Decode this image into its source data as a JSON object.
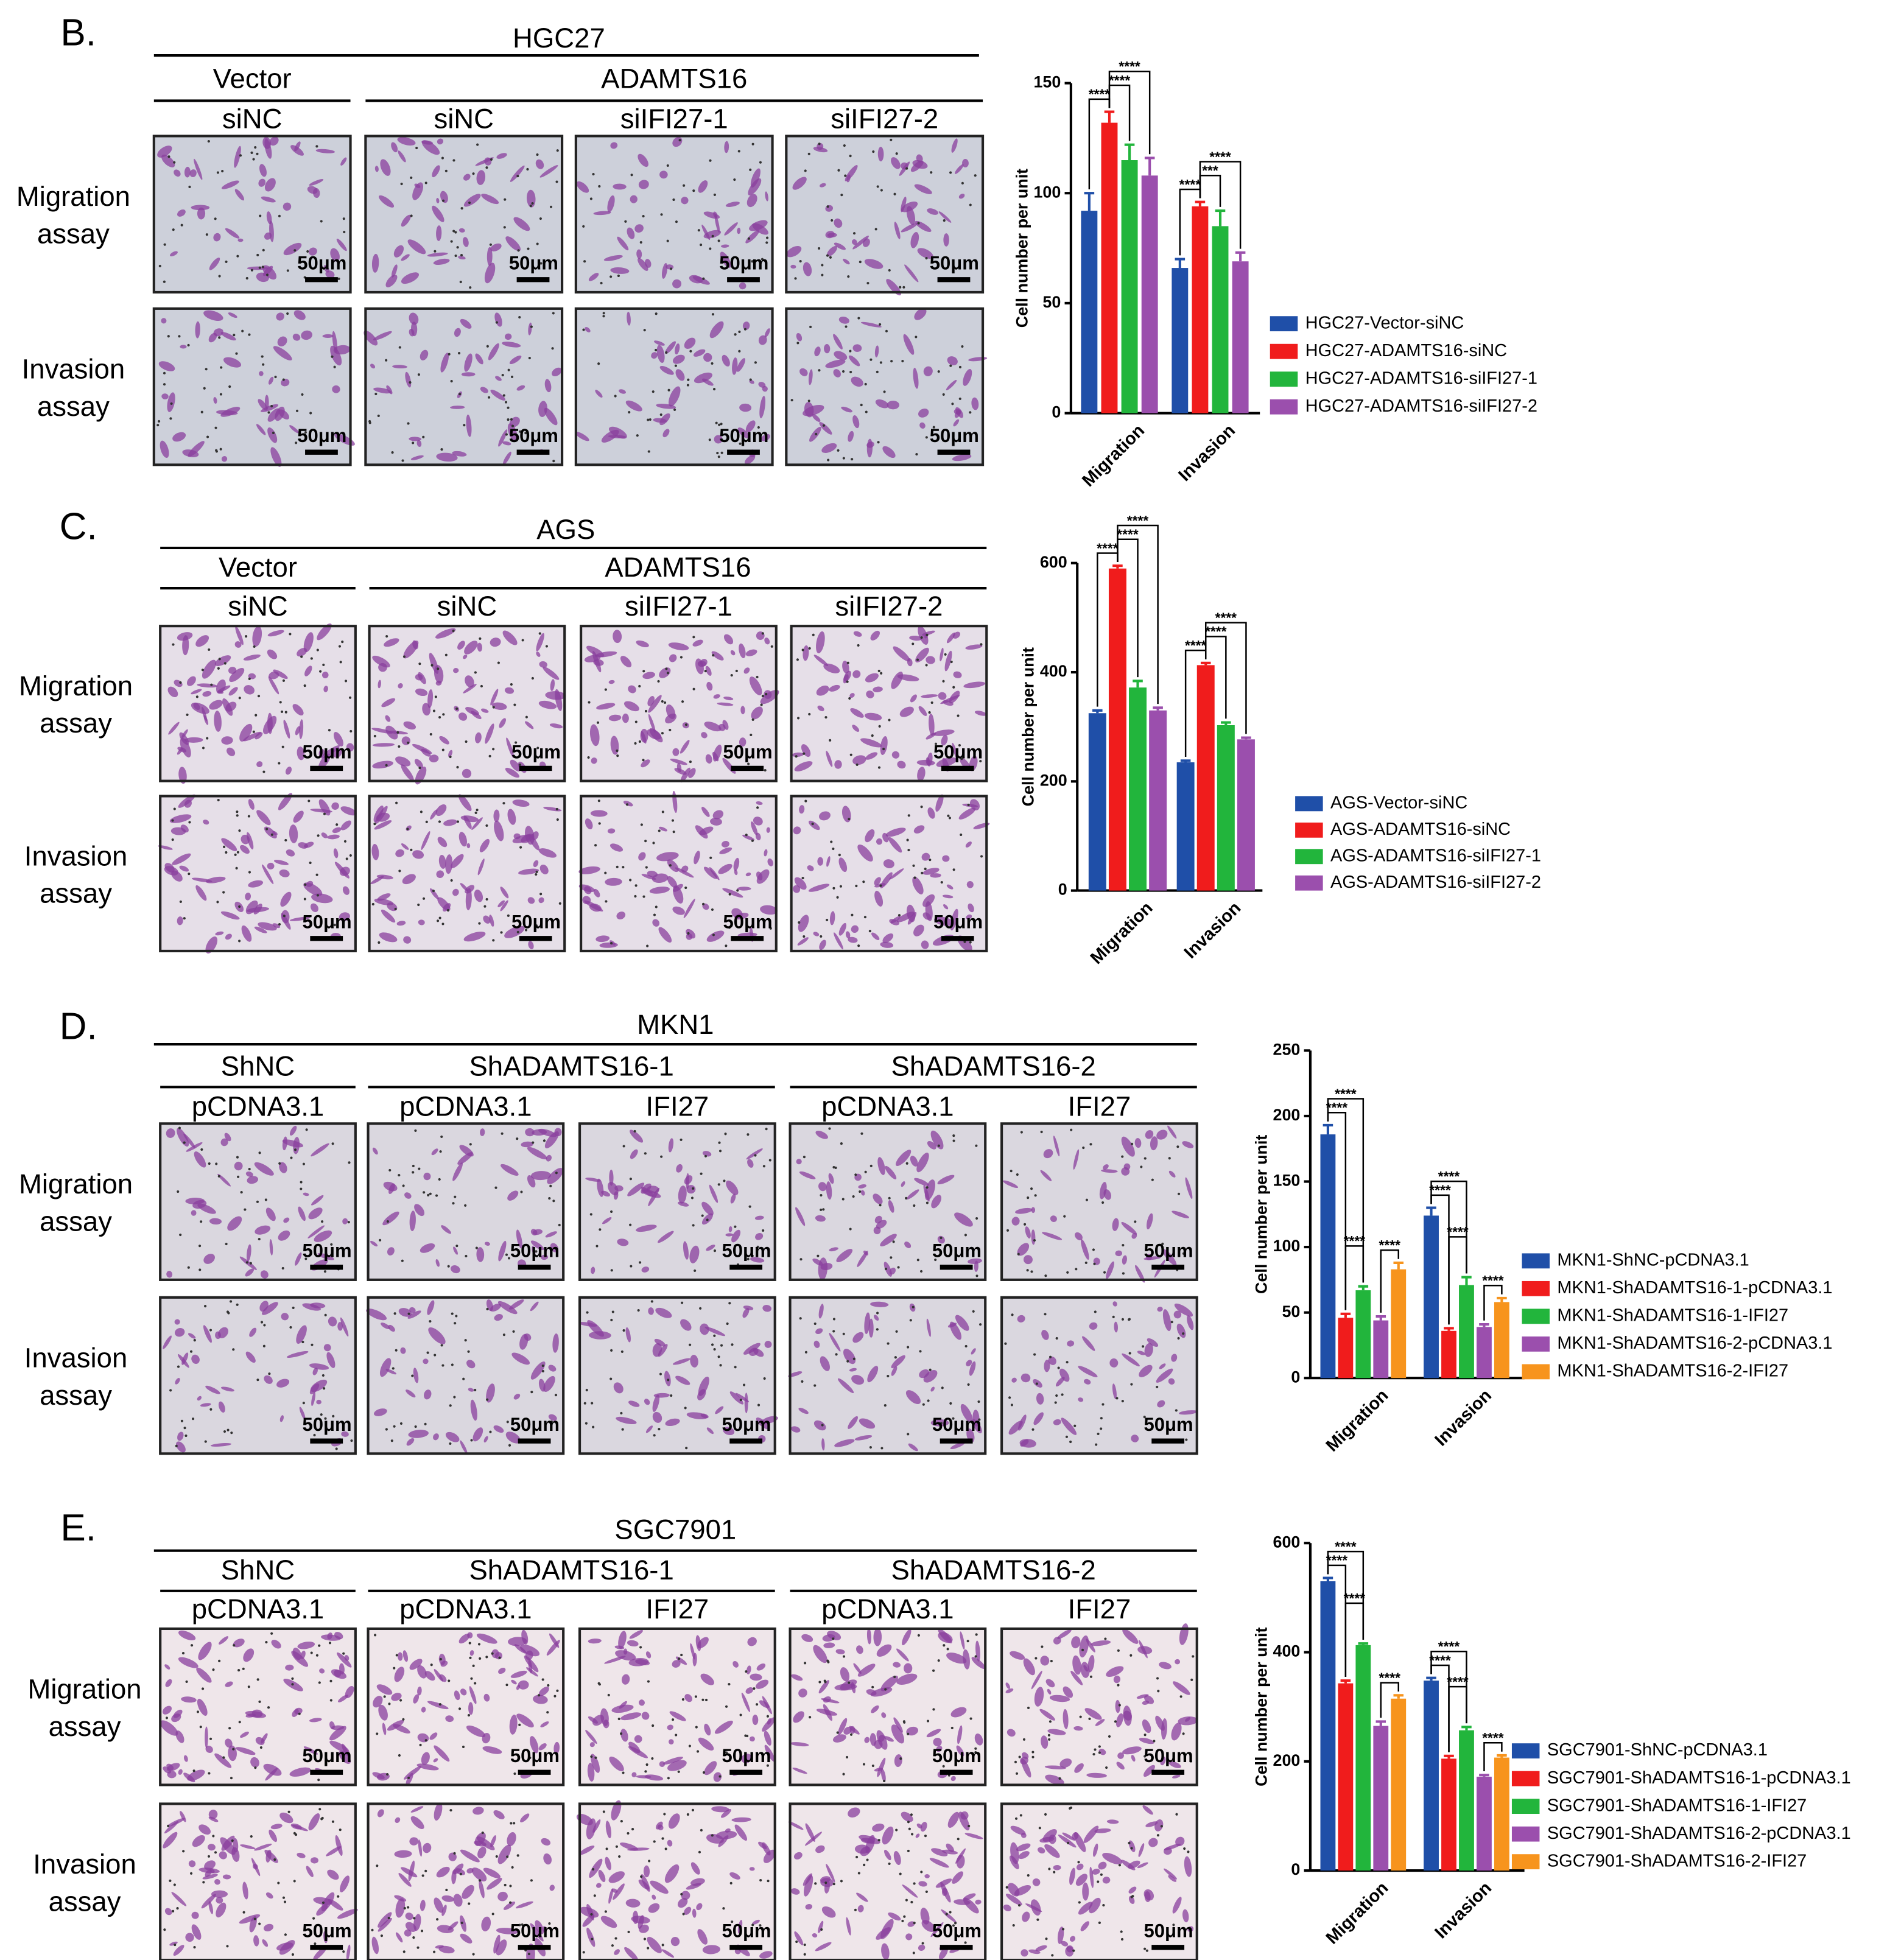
{
  "panels": [
    {
      "letter": "B.",
      "cell_line": "HGC27",
      "groups": [
        {
          "label": "Vector",
          "columns": [
            "siNC"
          ]
        },
        {
          "label": "ADAMTS16",
          "columns": [
            "siNC",
            "siIFI27-1",
            "siIFI27-2"
          ]
        }
      ],
      "rows": [
        [
          "Migration",
          "assay"
        ],
        [
          "Invasion",
          "assay"
        ]
      ],
      "scale_bar": "50μm"
    },
    {
      "letter": "C.",
      "cell_line": "AGS",
      "groups": [
        {
          "label": "Vector",
          "columns": [
            "siNC"
          ]
        },
        {
          "label": "ADAMTS16",
          "columns": [
            "siNC",
            "siIFI27-1",
            "siIFI27-2"
          ]
        }
      ],
      "rows": [
        [
          "Migration",
          "assay"
        ],
        [
          "Invasion",
          "assay"
        ]
      ],
      "scale_bar": "50μm"
    },
    {
      "letter": "D.",
      "cell_line": "MKN1",
      "groups": [
        {
          "label": "ShNC",
          "columns": [
            "pCDNA3.1"
          ]
        },
        {
          "label": "ShADAMTS16-1",
          "columns": [
            "pCDNA3.1",
            "IFI27"
          ]
        },
        {
          "label": "ShADAMTS16-2",
          "columns": [
            "pCDNA3.1",
            "IFI27"
          ]
        }
      ],
      "rows": [
        [
          "Migration",
          "assay"
        ],
        [
          "Invasion",
          "assay"
        ]
      ],
      "scale_bar": "50μm"
    },
    {
      "letter": "E.",
      "cell_line": "SGC7901",
      "groups": [
        {
          "label": "ShNC",
          "columns": [
            "pCDNA3.1"
          ]
        },
        {
          "label": "ShADAMTS16-1",
          "columns": [
            "pCDNA3.1",
            "IFI27"
          ]
        },
        {
          "label": "ShADAMTS16-2",
          "columns": [
            "pCDNA3.1",
            "IFI27"
          ]
        }
      ],
      "rows": [
        [
          "Migration",
          "assay"
        ],
        [
          "Invasion",
          "assay"
        ]
      ],
      "scale_bar": "50μm"
    }
  ],
  "chart_data": [
    {
      "type": "bar",
      "ylabel": "Cell number per unit",
      "categories": [
        "Migration",
        "Invasion"
      ],
      "ylim": [
        0,
        150
      ],
      "yticks": [
        0,
        50,
        100,
        150
      ],
      "legend": "right",
      "series": [
        {
          "name": "HGC27-Vector-siNC",
          "color": "#1f4fa8",
          "values": [
            92,
            66
          ],
          "errors": [
            8,
            4
          ]
        },
        {
          "name": "HGC27-ADAMTS16-siNC",
          "color": "#f01c1c",
          "values": [
            132,
            94
          ],
          "errors": [
            5,
            2
          ]
        },
        {
          "name": "HGC27-ADAMTS16-siIFI27-1",
          "color": "#22b53c",
          "values": [
            115,
            85
          ],
          "errors": [
            7,
            7
          ]
        },
        {
          "name": "HGC27-ADAMTS16-siIFI27-2",
          "color": "#9b4fad",
          "values": [
            108,
            69
          ],
          "errors": [
            8,
            4
          ]
        }
      ],
      "comparisons": [
        {
          "label": "****",
          "category": 0,
          "pair": [
            0,
            1
          ]
        },
        {
          "label": "****",
          "category": 0,
          "pair": [
            1,
            2
          ]
        },
        {
          "label": "****",
          "category": 0,
          "pair": [
            1,
            3
          ]
        },
        {
          "label": "****",
          "category": 1,
          "pair": [
            0,
            1
          ]
        },
        {
          "label": "***",
          "category": 1,
          "pair": [
            1,
            2
          ]
        },
        {
          "label": "****",
          "category": 1,
          "pair": [
            1,
            3
          ]
        }
      ]
    },
    {
      "type": "bar",
      "ylabel": "Cell number per unit",
      "categories": [
        "Migration",
        "Invasion"
      ],
      "ylim": [
        0,
        600
      ],
      "yticks": [
        0,
        200,
        400,
        600
      ],
      "legend": "right",
      "series": [
        {
          "name": "AGS-Vector-siNC",
          "color": "#1f4fa8",
          "values": [
            325,
            235
          ],
          "errors": [
            5,
            3
          ]
        },
        {
          "name": "AGS-ADAMTS16-siNC",
          "color": "#f01c1c",
          "values": [
            590,
            413
          ],
          "errors": [
            5,
            4
          ]
        },
        {
          "name": "AGS-ADAMTS16-siIFI27-1",
          "color": "#22b53c",
          "values": [
            372,
            303
          ],
          "errors": [
            12,
            5
          ]
        },
        {
          "name": "AGS-ADAMTS16-siIFI27-2",
          "color": "#9b4fad",
          "values": [
            330,
            277
          ],
          "errors": [
            5,
            3
          ]
        }
      ],
      "comparisons": [
        {
          "label": "****",
          "category": 0,
          "pair": [
            0,
            1
          ]
        },
        {
          "label": "****",
          "category": 0,
          "pair": [
            1,
            2
          ]
        },
        {
          "label": "****",
          "category": 0,
          "pair": [
            1,
            3
          ]
        },
        {
          "label": "****",
          "category": 1,
          "pair": [
            0,
            1
          ]
        },
        {
          "label": "****",
          "category": 1,
          "pair": [
            1,
            2
          ]
        },
        {
          "label": "****",
          "category": 1,
          "pair": [
            1,
            3
          ]
        }
      ]
    },
    {
      "type": "bar",
      "ylabel": "Cell number per unit",
      "categories": [
        "Migration",
        "Invasion"
      ],
      "ylim": [
        0,
        250
      ],
      "yticks": [
        0,
        50,
        100,
        150,
        200,
        250
      ],
      "legend": "right",
      "series": [
        {
          "name": "MKN1-ShNC-pCDNA3.1",
          "color": "#1f4fa8",
          "values": [
            186,
            124
          ],
          "errors": [
            7,
            6
          ]
        },
        {
          "name": "MKN1-ShADAMTS16-1-pCDNA3.1",
          "color": "#f01c1c",
          "values": [
            46,
            36
          ],
          "errors": [
            3,
            2
          ]
        },
        {
          "name": "MKN1-ShADAMTS16-1-IFI27",
          "color": "#22b53c",
          "values": [
            67,
            71
          ],
          "errors": [
            3,
            6
          ]
        },
        {
          "name": "MKN1-ShADAMTS16-2-pCDNA3.1",
          "color": "#9b4fad",
          "values": [
            44,
            39
          ],
          "errors": [
            3,
            2
          ]
        },
        {
          "name": "MKN1-ShADAMTS16-2-IFI27",
          "color": "#f7941d",
          "values": [
            83,
            58
          ],
          "errors": [
            5,
            3
          ]
        }
      ],
      "comparisons": [
        {
          "label": "****",
          "category": 0,
          "pair": [
            0,
            1
          ]
        },
        {
          "label": "****",
          "category": 0,
          "pair": [
            0,
            2
          ]
        },
        {
          "label": "****",
          "category": 0,
          "pair": [
            1,
            2
          ]
        },
        {
          "label": "****",
          "category": 0,
          "pair": [
            3,
            4
          ]
        },
        {
          "label": "****",
          "category": 1,
          "pair": [
            0,
            1
          ]
        },
        {
          "label": "****",
          "category": 1,
          "pair": [
            0,
            2
          ]
        },
        {
          "label": "****",
          "category": 1,
          "pair": [
            1,
            2
          ]
        },
        {
          "label": "****",
          "category": 1,
          "pair": [
            3,
            4
          ]
        }
      ]
    },
    {
      "type": "bar",
      "ylabel": "Cell number per unit",
      "categories": [
        "Migration",
        "Invasion"
      ],
      "ylim": [
        0,
        600
      ],
      "yticks": [
        0,
        200,
        400,
        600
      ],
      "legend": "right",
      "series": [
        {
          "name": "SGC7901-ShNC-pCDNA3.1",
          "color": "#1f4fa8",
          "values": [
            530,
            348
          ],
          "errors": [
            6,
            5
          ]
        },
        {
          "name": "SGC7901-ShADAMTS16-1-pCDNA3.1",
          "color": "#f01c1c",
          "values": [
            343,
            205
          ],
          "errors": [
            5,
            5
          ]
        },
        {
          "name": "SGC7901-ShADAMTS16-1-IFI27",
          "color": "#22b53c",
          "values": [
            413,
            257
          ],
          "errors": [
            3,
            6
          ]
        },
        {
          "name": "SGC7901-ShADAMTS16-2-pCDNA3.1",
          "color": "#9b4fad",
          "values": [
            265,
            172
          ],
          "errors": [
            8,
            3
          ]
        },
        {
          "name": "SGC7901-ShADAMTS16-2-IFI27",
          "color": "#f7941d",
          "values": [
            315,
            207
          ],
          "errors": [
            6,
            4
          ]
        }
      ],
      "comparisons": [
        {
          "label": "****",
          "category": 0,
          "pair": [
            0,
            1
          ]
        },
        {
          "label": "****",
          "category": 0,
          "pair": [
            0,
            2
          ]
        },
        {
          "label": "****",
          "category": 0,
          "pair": [
            1,
            2
          ]
        },
        {
          "label": "****",
          "category": 0,
          "pair": [
            3,
            4
          ]
        },
        {
          "label": "****",
          "category": 1,
          "pair": [
            0,
            1
          ]
        },
        {
          "label": "****",
          "category": 1,
          "pair": [
            0,
            2
          ]
        },
        {
          "label": "****",
          "category": 1,
          "pair": [
            1,
            2
          ]
        },
        {
          "label": "****",
          "category": 1,
          "pair": [
            3,
            4
          ]
        }
      ]
    }
  ]
}
